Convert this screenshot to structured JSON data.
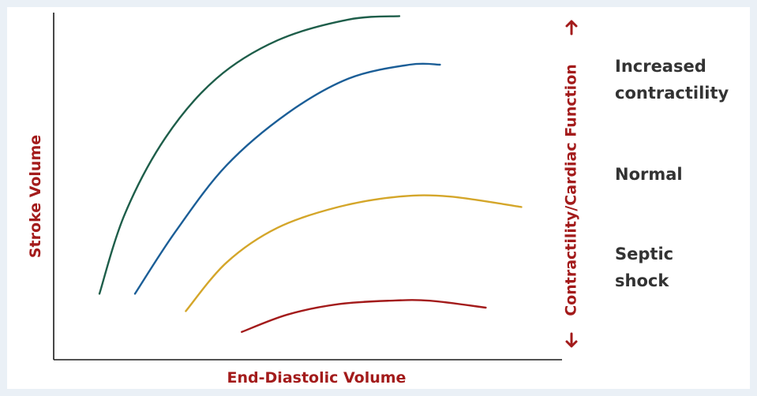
{
  "chart_data": {
    "type": "line",
    "title": "",
    "xlabel": "End-Diastolic Volume",
    "ylabel": "Stroke Volume",
    "secondary_axis_label": "Contractility/Cardiac Function",
    "ticks": "none",
    "grid": false,
    "xlim": [
      0,
      100
    ],
    "ylim": [
      0,
      100
    ],
    "series": [
      {
        "color": "#1e5e4a",
        "x": [
          9,
          14,
          22,
          32,
          44,
          58,
          68
        ],
        "y": [
          19,
          42,
          64,
          81,
          92,
          98,
          99
        ]
      },
      {
        "color": "#1b5e97",
        "x": [
          16,
          24,
          34,
          46,
          58,
          70,
          76
        ],
        "y": [
          19,
          37,
          56,
          71,
          81,
          85,
          85
        ]
      },
      {
        "color": "#d4a62a",
        "x": [
          26,
          34,
          44,
          56,
          68,
          78,
          92
        ],
        "y": [
          14,
          28,
          38,
          44,
          47,
          47,
          44
        ]
      },
      {
        "color": "#a31b1b",
        "x": [
          37,
          46,
          56,
          66,
          74,
          85
        ],
        "y": [
          8,
          13,
          16,
          17,
          17,
          15
        ]
      }
    ],
    "level_labels": [
      {
        "line1": "Increased",
        "line2": "contractility"
      },
      {
        "line1": "Normal",
        "line2": ""
      },
      {
        "line1": "Septic",
        "line2": "shock"
      }
    ]
  }
}
